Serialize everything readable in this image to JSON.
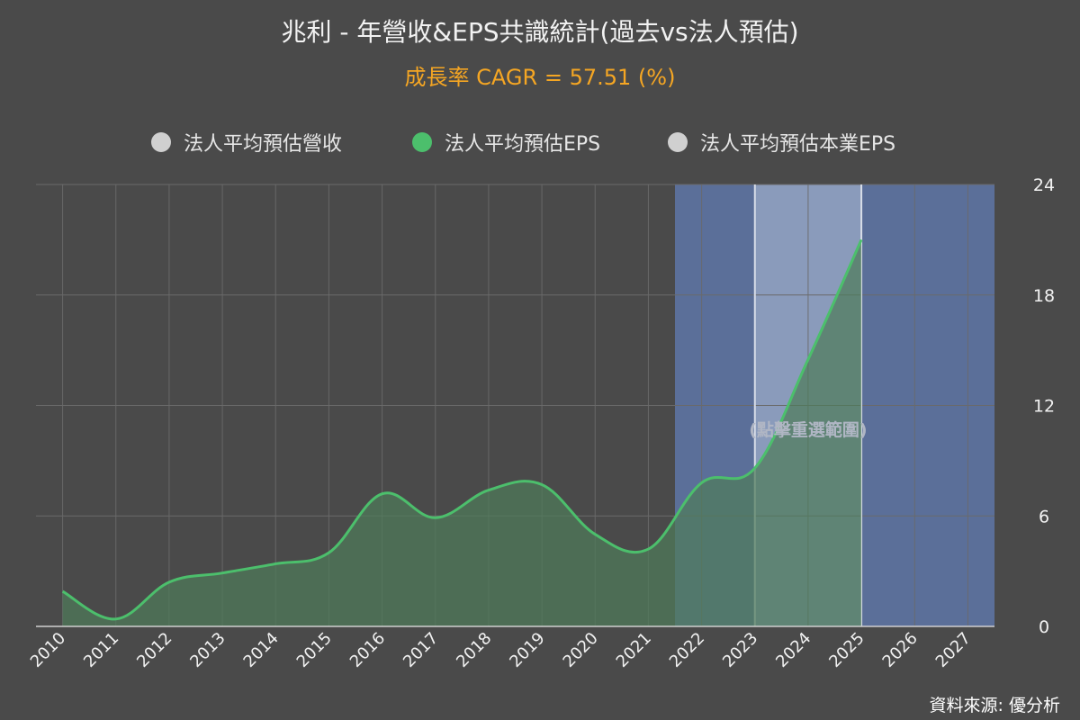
{
  "header": {
    "title": "兆利 - 年營收&EPS共識統計(過去vs法人預估)",
    "subtitle": "成長率 CAGR = 57.51 (%)"
  },
  "legend": [
    {
      "label": "法人平均預估營收",
      "color": "#d0d0d0"
    },
    {
      "label": "法人平均預估EPS",
      "color": "#4cbf6c"
    },
    {
      "label": "法人平均預估本業EPS",
      "color": "#d0d0d0"
    }
  ],
  "overlay": {
    "hint": "(點擊重選範圍)"
  },
  "source": {
    "text": "資料來源: 優分析"
  },
  "colors": {
    "background": "#4a4a4a",
    "series_line": "#4cbf6c",
    "series_fill": "#4f7c5a",
    "forecast_band": "#5b6f99",
    "selected_band": "#8a9bbb",
    "grid": "#6a6a6a",
    "subtitle": "#f5a623"
  },
  "chart_data": {
    "type": "area",
    "x": [
      "2010",
      "2011",
      "2012",
      "2013",
      "2014",
      "2015",
      "2016",
      "2017",
      "2018",
      "2019",
      "2020",
      "2021",
      "2022",
      "2023",
      "2024",
      "2025",
      "2026",
      "2027"
    ],
    "series": [
      {
        "name": "法人平均預估EPS",
        "values": [
          1.9,
          0.4,
          2.4,
          2.9,
          3.4,
          4.0,
          7.2,
          5.9,
          7.4,
          7.7,
          5.0,
          4.2,
          7.8,
          8.6,
          14.5,
          21.0,
          null,
          null
        ]
      }
    ],
    "yaxis": {
      "position": "right",
      "min": 0,
      "max": 24,
      "ticks": [
        0,
        6,
        12,
        18,
        24
      ]
    },
    "grid": true,
    "forecast_range": [
      "2022",
      "2027"
    ],
    "selected_range": [
      "2023",
      "2025"
    ],
    "legend_position": "top"
  }
}
